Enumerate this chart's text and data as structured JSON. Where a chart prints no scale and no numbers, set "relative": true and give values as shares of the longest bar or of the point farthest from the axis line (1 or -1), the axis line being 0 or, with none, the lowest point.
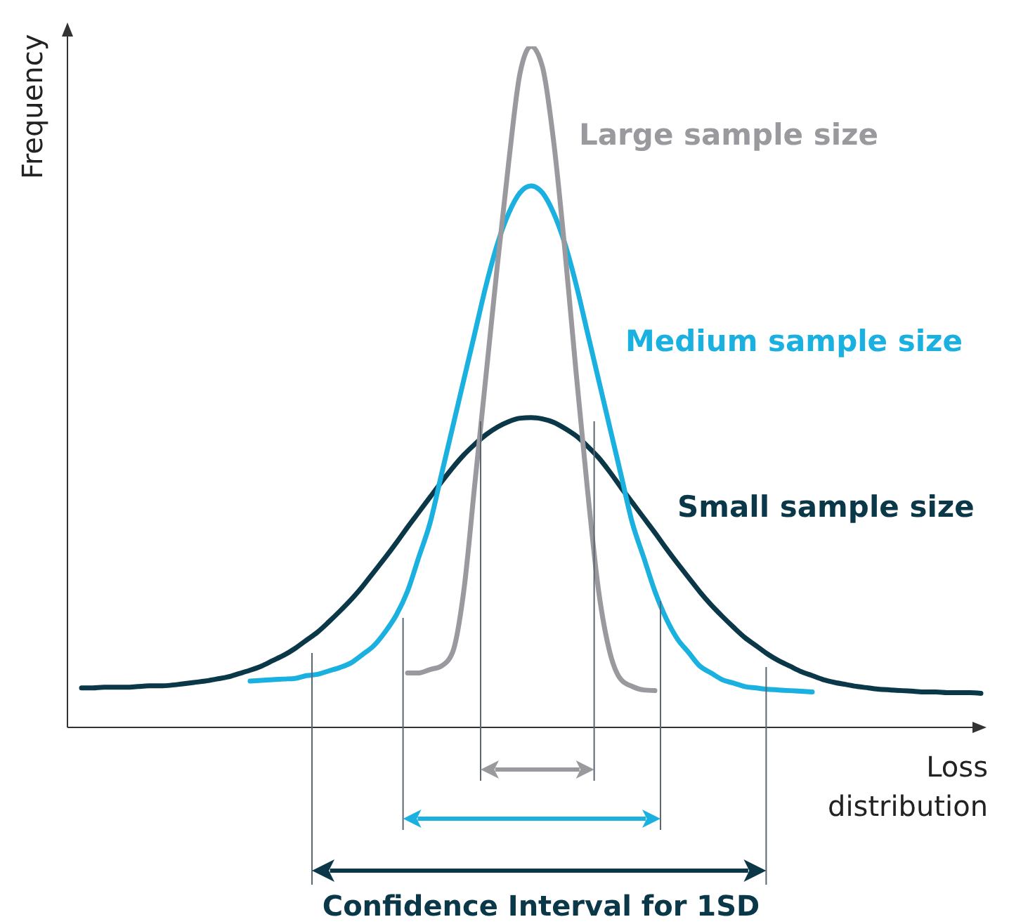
{
  "chart_data": {
    "type": "line",
    "relative": true,
    "xlabel": "Loss distribution",
    "ylabel": "Frequency",
    "annotations": [
      "Confidence Interval for 1SD"
    ],
    "categories": [
      null,
      null,
      null,
      null,
      null,
      null,
      null,
      null,
      null,
      null,
      null,
      null,
      null,
      null,
      null,
      null,
      null,
      null,
      null,
      null,
      null,
      null,
      null,
      null,
      null,
      null,
      null,
      null,
      null,
      null,
      null,
      null,
      null,
      null,
      null,
      null,
      null,
      null,
      null,
      null,
      null,
      null,
      null,
      null,
      null,
      null,
      null,
      null,
      null,
      null,
      null,
      null,
      null,
      null,
      null,
      null,
      null,
      null,
      null,
      null,
      null,
      null,
      null,
      null,
      null,
      null,
      null,
      null,
      null,
      null,
      null,
      null,
      null,
      null,
      null,
      null,
      null,
      null,
      null,
      null,
      null
    ],
    "series": [
      {
        "name": "Small sample size",
        "color": "#0b3848",
        "values": [
          0.058,
          0.058,
          0.059,
          0.059,
          0.059,
          0.06,
          0.061,
          0.061,
          0.062,
          0.064,
          0.066,
          0.068,
          0.071,
          0.074,
          0.079,
          0.084,
          0.09,
          0.098,
          0.106,
          0.116,
          0.128,
          0.14,
          0.155,
          0.171,
          0.188,
          0.207,
          0.228,
          0.249,
          0.271,
          0.294,
          0.316,
          0.338,
          0.36,
          0.381,
          0.4,
          0.416,
          0.43,
          0.441,
          0.449,
          0.454,
          0.455,
          0.453,
          0.448,
          0.439,
          0.428,
          0.413,
          0.396,
          0.375,
          0.352,
          0.33,
          0.308,
          0.286,
          0.263,
          0.241,
          0.22,
          0.199,
          0.18,
          0.163,
          0.147,
          0.132,
          0.12,
          0.108,
          0.098,
          0.09,
          0.082,
          0.076,
          0.07,
          0.066,
          0.063,
          0.06,
          0.058,
          0.056,
          0.055,
          0.054,
          0.053,
          0.052,
          0.052,
          0.051,
          0.051,
          0.051,
          0.05
        ]
      },
      {
        "name": "Medium sample size",
        "color": "#1ab0e0",
        "values": [
          null,
          null,
          null,
          null,
          null,
          null,
          null,
          null,
          null,
          null,
          null,
          null,
          null,
          null,
          null,
          0.068,
          0.069,
          0.07,
          0.071,
          0.072,
          0.076,
          0.078,
          0.083,
          0.088,
          0.095,
          0.107,
          0.12,
          0.14,
          0.165,
          0.2,
          0.25,
          0.3,
          0.37,
          0.44,
          0.51,
          0.58,
          0.65,
          0.71,
          0.755,
          0.785,
          0.795,
          0.785,
          0.755,
          0.71,
          0.65,
          0.58,
          0.51,
          0.44,
          0.37,
          0.3,
          0.25,
          0.2,
          0.16,
          0.13,
          0.11,
          0.09,
          0.08,
          0.07,
          0.065,
          0.06,
          0.058,
          0.056,
          0.055,
          0.054,
          0.053,
          0.052,
          null,
          null,
          null,
          null,
          null,
          null,
          null,
          null,
          null,
          null,
          null,
          null,
          null,
          null,
          null
        ]
      },
      {
        "name": "Large sample size",
        "color": "#9a999e",
        "values": [
          null,
          null,
          null,
          null,
          null,
          null,
          null,
          null,
          null,
          null,
          null,
          null,
          null,
          null,
          null,
          null,
          null,
          null,
          null,
          null,
          null,
          null,
          null,
          null,
          null,
          null,
          null,
          null,
          null,
          0.08,
          0.08,
          0.085,
          0.09,
          0.11,
          0.2,
          0.36,
          0.52,
          0.68,
          0.83,
          0.96,
          1,
          0.97,
          0.86,
          0.7,
          0.52,
          0.35,
          0.2,
          0.11,
          0.07,
          0.06,
          0.055,
          0.054,
          null,
          null,
          null,
          null,
          null,
          null,
          null,
          null,
          null,
          null,
          null,
          null,
          null,
          null,
          null,
          null,
          null,
          null,
          null,
          null,
          null,
          null,
          null,
          null,
          null,
          null,
          null,
          null,
          null
        ]
      }
    ]
  }
}
